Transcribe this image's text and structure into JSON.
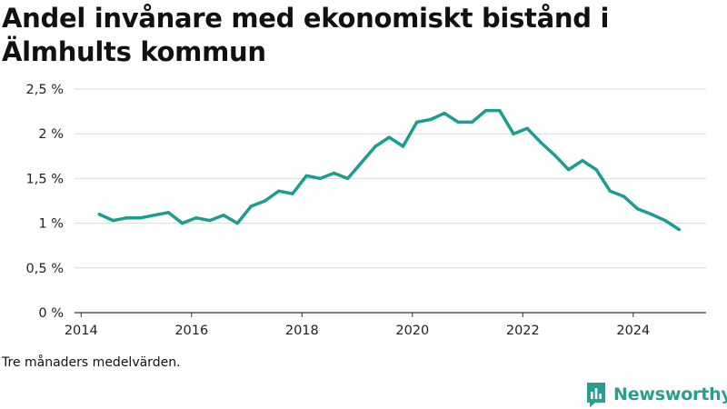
{
  "title": "Andel invånare med ekonomiskt bistånd i Älmhults kommun",
  "note": "Tre månaders medelvärden.",
  "brand": {
    "name": "Newsworthy",
    "icon": "newsworthy-logo-icon",
    "color": "#2a9d8f"
  },
  "chart_data": {
    "type": "line",
    "title": "Andel invånare med ekonomiskt bistånd i Älmhults kommun",
    "xlabel": "",
    "ylabel": "",
    "xlim": [
      2013.88,
      2025.32
    ],
    "ylim": [
      0,
      2.5
    ],
    "x_ticks": [
      2014,
      2016,
      2018,
      2020,
      2022,
      2024
    ],
    "x_tick_labels": [
      "2014",
      "2016",
      "2018",
      "2020",
      "2022",
      "2024"
    ],
    "y_ticks": [
      0,
      0.5,
      1,
      1.5,
      2,
      2.5
    ],
    "y_tick_labels": [
      "0 %",
      "0,5 %",
      "1 %",
      "1,5 %",
      "2 %",
      "2,5 %"
    ],
    "grid": "horizontal",
    "line_color": "#1a9e8f",
    "series": [
      {
        "x": [
          2014.33,
          2014.58,
          2014.83,
          2015.08,
          2015.33,
          2015.58,
          2015.83,
          2016.08,
          2016.33,
          2016.58,
          2016.83,
          2017.08,
          2017.33,
          2017.58,
          2017.83,
          2018.08,
          2018.33,
          2018.58,
          2018.83,
          2019.08,
          2019.33,
          2019.58,
          2019.83,
          2020.08,
          2020.33,
          2020.58,
          2020.83,
          2021.08,
          2021.33,
          2021.58,
          2021.83,
          2022.08,
          2022.33,
          2022.58,
          2022.83,
          2023.08,
          2023.33,
          2023.58,
          2023.83,
          2024.08,
          2024.33,
          2024.58,
          2024.83
        ],
        "y": [
          1.1,
          1.03,
          1.06,
          1.06,
          1.09,
          1.12,
          1.0,
          1.06,
          1.03,
          1.09,
          1.0,
          1.19,
          1.25,
          1.36,
          1.33,
          1.53,
          1.5,
          1.56,
          1.5,
          1.68,
          1.86,
          1.96,
          1.86,
          2.13,
          2.16,
          2.23,
          2.13,
          2.13,
          2.26,
          2.26,
          2.0,
          2.06,
          1.9,
          1.76,
          1.6,
          1.7,
          1.6,
          1.36,
          1.3,
          1.16,
          1.1,
          1.03,
          0.93
        ]
      }
    ]
  }
}
